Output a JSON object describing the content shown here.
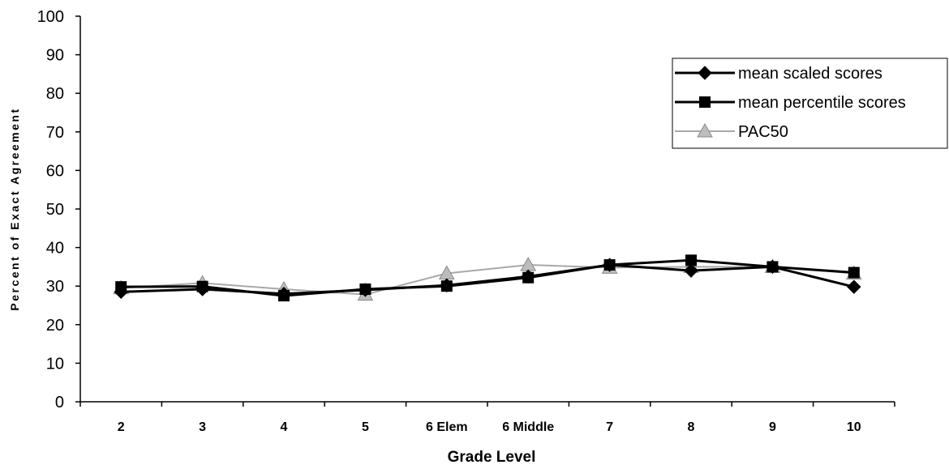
{
  "chart_data": {
    "type": "line",
    "title": "",
    "xlabel": "Grade Level",
    "ylabel": "Percent of Exact Agreement",
    "ylim": [
      0,
      100
    ],
    "yticks": [
      "0",
      "10",
      "20",
      "30",
      "40",
      "50",
      "60",
      "70",
      "80",
      "90",
      "100"
    ],
    "categories": [
      "2",
      "3",
      "4",
      "5",
      "6 Elem",
      "6 Middle",
      "7",
      "8",
      "9",
      "10"
    ],
    "grid": false,
    "legend_position": "top-right",
    "series": [
      {
        "name": "mean scaled scores",
        "marker": "diamond",
        "color": "#000000",
        "values": [
          28.5,
          29.2,
          28.0,
          29.0,
          30.2,
          32.5,
          35.5,
          34.0,
          35.0,
          29.8
        ]
      },
      {
        "name": "mean percentile scores",
        "marker": "square",
        "color": "#000000",
        "values": [
          29.8,
          29.9,
          27.5,
          29.2,
          30.0,
          32.2,
          35.5,
          36.7,
          35.0,
          33.5
        ]
      },
      {
        "name": "PAC50",
        "marker": "triangle",
        "color": "#9a9a9a",
        "values": [
          29.5,
          30.8,
          29.2,
          27.8,
          33.3,
          35.5,
          34.8,
          35.0,
          35.0,
          33.3
        ]
      }
    ]
  }
}
